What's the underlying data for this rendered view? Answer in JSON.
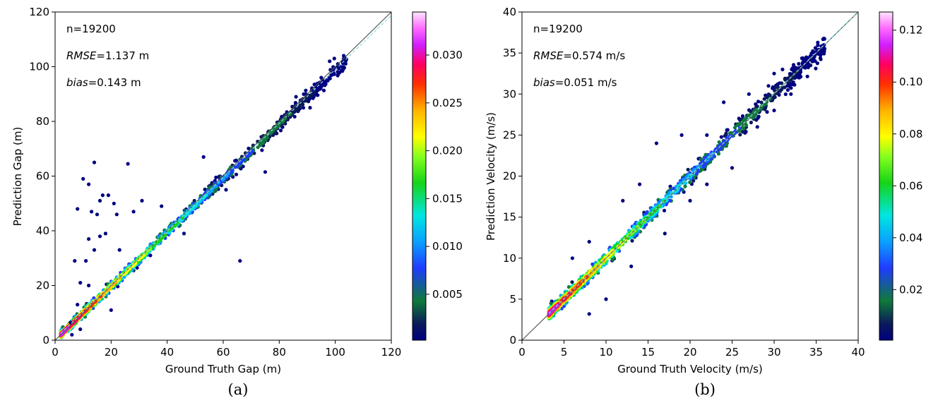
{
  "chart_data": [
    {
      "type": "scatter",
      "panel": "(a)",
      "caption": "(a)",
      "xlabel": "Ground Truth Gap (m)",
      "ylabel": "Prediction Gap (m)",
      "xlim": [
        0,
        120
      ],
      "ylim": [
        0,
        120
      ],
      "xticks": [
        0,
        20,
        40,
        60,
        80,
        100,
        120
      ],
      "yticks": [
        0,
        20,
        40,
        60,
        80,
        100,
        120
      ],
      "annotations": {
        "n": {
          "prefix": "n=19200",
          "italic": "",
          "suffix": ""
        },
        "rmse": {
          "prefix": "",
          "italic": "RMSE",
          "suffix": "=1.137 m"
        },
        "bias": {
          "prefix": "",
          "italic": "bias",
          "suffix": "=0.143 m"
        }
      },
      "n_points": 19200,
      "rmse": 1.137,
      "bias": 0.143,
      "colorbar": {
        "min": 0.0002,
        "max": 0.0345,
        "ticks": [
          0.005,
          0.01,
          0.015,
          0.02,
          0.025,
          0.03
        ],
        "tick_labels": [
          "0.005",
          "0.010",
          "0.015",
          "0.020",
          "0.025",
          "0.030"
        ],
        "colormap": "gist_ncar"
      },
      "reference_line": "y = x",
      "trend_line": {
        "slope": 0.985,
        "intercept": 0.5
      },
      "outliers": [
        [
          8,
          48
        ],
        [
          10,
          59
        ],
        [
          12,
          57
        ],
        [
          13,
          47
        ],
        [
          14,
          65
        ],
        [
          15,
          46
        ],
        [
          16,
          51
        ],
        [
          17,
          53
        ],
        [
          19,
          53
        ],
        [
          21,
          50
        ],
        [
          22,
          46
        ],
        [
          26,
          64.5
        ],
        [
          31,
          51
        ],
        [
          66,
          29
        ],
        [
          75,
          61.5
        ],
        [
          7,
          29
        ],
        [
          12,
          37
        ],
        [
          16,
          38
        ],
        [
          14,
          33
        ],
        [
          18,
          39
        ],
        [
          23,
          33
        ],
        [
          5.5,
          6.5
        ],
        [
          8,
          13
        ],
        [
          9,
          21
        ],
        [
          11,
          29
        ],
        [
          9,
          4
        ],
        [
          6,
          2
        ],
        [
          12,
          20
        ],
        [
          20,
          11
        ],
        [
          28,
          47
        ],
        [
          34,
          31
        ],
        [
          38,
          49
        ],
        [
          46,
          39
        ],
        [
          53,
          67
        ],
        [
          61,
          55
        ],
        [
          86,
          89
        ],
        [
          91,
          85
        ],
        [
          98,
          102
        ],
        [
          103,
          104
        ],
        [
          95,
          96
        ]
      ],
      "density_seed": 7,
      "density_extent": [
        2,
        104
      ],
      "noise_scale": 1.1
    },
    {
      "type": "scatter",
      "panel": "(b)",
      "caption": "(b)",
      "xlabel": "Ground Truth Velocity (m/s)",
      "ylabel": "Prediction Velocity (m/s)",
      "xlim": [
        0,
        40
      ],
      "ylim": [
        0,
        40
      ],
      "xticks": [
        0,
        5,
        10,
        15,
        20,
        25,
        30,
        35,
        40
      ],
      "yticks": [
        0,
        5,
        10,
        15,
        20,
        25,
        30,
        35,
        40
      ],
      "annotations": {
        "n": {
          "prefix": "n=19200",
          "italic": "",
          "suffix": ""
        },
        "rmse": {
          "prefix": "",
          "italic": "RMSE",
          "suffix": "=0.574 m/s"
        },
        "bias": {
          "prefix": "",
          "italic": "bias",
          "suffix": "=0.051 m/s"
        }
      },
      "n_points": 19200,
      "rmse": 0.574,
      "bias": 0.051,
      "colorbar": {
        "min": 0.0005,
        "max": 0.127,
        "ticks": [
          0.02,
          0.04,
          0.06,
          0.08,
          0.1,
          0.12
        ],
        "tick_labels": [
          "0.02",
          "0.04",
          "0.06",
          "0.08",
          "0.10",
          "0.12"
        ],
        "colormap": "gist_ncar"
      },
      "reference_line": "y = x",
      "trend_line": {
        "slope": 1.0,
        "intercept": 0.05
      },
      "outliers": [
        [
          8,
          3.2
        ],
        [
          16,
          24
        ],
        [
          19,
          25
        ],
        [
          22,
          25
        ],
        [
          24,
          29
        ],
        [
          27,
          30
        ],
        [
          30,
          32.5
        ],
        [
          31,
          33
        ],
        [
          33,
          32
        ],
        [
          35,
          35
        ],
        [
          36,
          35.5
        ],
        [
          34,
          34
        ],
        [
          10,
          5
        ],
        [
          13,
          9
        ],
        [
          6,
          10
        ],
        [
          8,
          12
        ],
        [
          12,
          17
        ],
        [
          14,
          19
        ],
        [
          17,
          13
        ],
        [
          20,
          17
        ],
        [
          22,
          19
        ],
        [
          25,
          21
        ],
        [
          28,
          26
        ],
        [
          30,
          28
        ],
        [
          32,
          30
        ]
      ],
      "density_seed": 11,
      "density_extent": [
        3.2,
        36
      ],
      "noise_scale": 0.55
    }
  ]
}
